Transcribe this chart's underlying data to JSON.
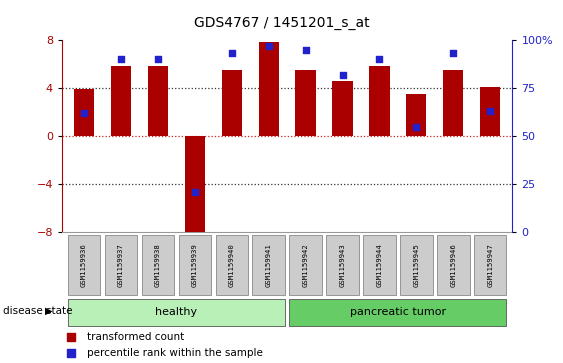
{
  "title": "GDS4767 / 1451201_s_at",
  "samples": [
    "GSM1159936",
    "GSM1159937",
    "GSM1159938",
    "GSM1159939",
    "GSM1159940",
    "GSM1159941",
    "GSM1159942",
    "GSM1159943",
    "GSM1159944",
    "GSM1159945",
    "GSM1159946",
    "GSM1159947"
  ],
  "bar_values": [
    3.9,
    5.8,
    5.8,
    -8.8,
    5.5,
    7.8,
    5.5,
    4.6,
    5.8,
    3.5,
    5.5,
    4.1
  ],
  "percentile_values": [
    62,
    90,
    90,
    21,
    93,
    97,
    95,
    82,
    90,
    55,
    93,
    63
  ],
  "bar_color": "#aa0000",
  "dot_color": "#2222cc",
  "ylim_left": [
    -8,
    8
  ],
  "ylim_right": [
    0,
    100
  ],
  "yticks_left": [
    -8,
    -4,
    0,
    4,
    8
  ],
  "yticks_right": [
    0,
    25,
    50,
    75,
    100
  ],
  "groups": [
    {
      "label": "healthy",
      "start": 0,
      "end": 5,
      "color": "#b8f0b8"
    },
    {
      "label": "pancreatic tumor",
      "start": 6,
      "end": 11,
      "color": "#66cc66"
    }
  ],
  "disease_state_label": "disease state",
  "legend_entries": [
    {
      "label": "transformed count",
      "color": "#aa0000"
    },
    {
      "label": "percentile rank within the sample",
      "color": "#2222cc"
    }
  ],
  "hline0_color": "#cc2222",
  "hline_color": "#333333",
  "bg_color": "#ffffff",
  "label_box_color": "#cccccc",
  "label_box_edge": "#888888"
}
